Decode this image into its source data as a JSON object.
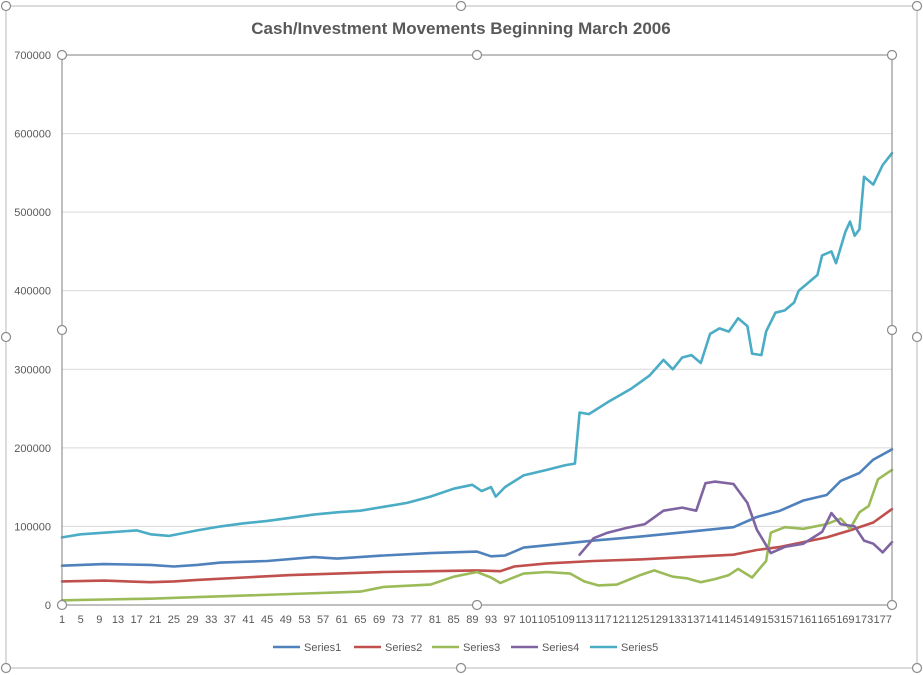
{
  "chart_data": {
    "type": "line",
    "title": "Cash/Investment Movements Beginning March 2006",
    "xlabel": "",
    "ylabel": "",
    "ylim": [
      0,
      700000
    ],
    "y_ticks": [
      "0",
      "100000",
      "200000",
      "300000",
      "400000",
      "500000",
      "600000",
      "700000"
    ],
    "x_range": [
      1,
      179
    ],
    "x_tick_labels": [
      "1",
      "5",
      "9",
      "13",
      "17",
      "21",
      "25",
      "29",
      "33",
      "37",
      "41",
      "45",
      "49",
      "53",
      "57",
      "61",
      "65",
      "69",
      "73",
      "77",
      "81",
      "85",
      "89",
      "93",
      "97",
      "101",
      "105",
      "109",
      "113",
      "117",
      "121",
      "125",
      "129",
      "133",
      "137",
      "141",
      "145",
      "149",
      "153",
      "157",
      "161",
      "165",
      "169",
      "173",
      "177"
    ],
    "grid": "horizontal",
    "legend_position": "bottom",
    "series": [
      {
        "name": "Series1",
        "color": "#4f81bd",
        "points": [
          [
            1,
            50000
          ],
          [
            10,
            52000
          ],
          [
            20,
            51000
          ],
          [
            25,
            49000
          ],
          [
            30,
            51000
          ],
          [
            35,
            54000
          ],
          [
            45,
            56000
          ],
          [
            55,
            61000
          ],
          [
            60,
            59000
          ],
          [
            70,
            63000
          ],
          [
            80,
            66000
          ],
          [
            90,
            68000
          ],
          [
            93,
            62000
          ],
          [
            96,
            63000
          ],
          [
            100,
            73000
          ],
          [
            110,
            79000
          ],
          [
            115,
            82000
          ],
          [
            125,
            87000
          ],
          [
            135,
            93000
          ],
          [
            145,
            99000
          ],
          [
            150,
            112000
          ],
          [
            155,
            120000
          ],
          [
            160,
            133000
          ],
          [
            165,
            140000
          ],
          [
            168,
            158000
          ],
          [
            172,
            168000
          ],
          [
            175,
            185000
          ],
          [
            179,
            198000
          ]
        ]
      },
      {
        "name": "Series2",
        "color": "#c0504d",
        "points": [
          [
            1,
            30000
          ],
          [
            10,
            31000
          ],
          [
            20,
            29000
          ],
          [
            25,
            30000
          ],
          [
            30,
            32000
          ],
          [
            40,
            35000
          ],
          [
            50,
            38000
          ],
          [
            60,
            40000
          ],
          [
            70,
            42000
          ],
          [
            80,
            43000
          ],
          [
            90,
            44000
          ],
          [
            95,
            43000
          ],
          [
            98,
            49000
          ],
          [
            105,
            53000
          ],
          [
            115,
            56000
          ],
          [
            125,
            58000
          ],
          [
            135,
            61000
          ],
          [
            145,
            64000
          ],
          [
            150,
            70000
          ],
          [
            155,
            74000
          ],
          [
            160,
            80000
          ],
          [
            165,
            86000
          ],
          [
            170,
            95000
          ],
          [
            175,
            105000
          ],
          [
            179,
            122000
          ]
        ]
      },
      {
        "name": "Series3",
        "color": "#9bbb59",
        "points": [
          [
            1,
            6000
          ],
          [
            10,
            7000
          ],
          [
            20,
            8000
          ],
          [
            30,
            10000
          ],
          [
            40,
            12000
          ],
          [
            50,
            14000
          ],
          [
            60,
            16000
          ],
          [
            65,
            17000
          ],
          [
            70,
            23000
          ],
          [
            80,
            26000
          ],
          [
            85,
            36000
          ],
          [
            90,
            42000
          ],
          [
            93,
            35000
          ],
          [
            95,
            28000
          ],
          [
            97,
            33000
          ],
          [
            100,
            40000
          ],
          [
            105,
            42000
          ],
          [
            110,
            40000
          ],
          [
            113,
            30000
          ],
          [
            116,
            25000
          ],
          [
            120,
            26000
          ],
          [
            125,
            38000
          ],
          [
            128,
            44000
          ],
          [
            132,
            36000
          ],
          [
            135,
            34000
          ],
          [
            138,
            29000
          ],
          [
            141,
            33000
          ],
          [
            144,
            38000
          ],
          [
            146,
            46000
          ],
          [
            149,
            35000
          ],
          [
            152,
            56000
          ],
          [
            153,
            92000
          ],
          [
            156,
            99000
          ],
          [
            160,
            97000
          ],
          [
            165,
            103000
          ],
          [
            168,
            110000
          ],
          [
            170,
            97000
          ],
          [
            172,
            118000
          ],
          [
            174,
            126000
          ],
          [
            176,
            160000
          ],
          [
            179,
            172000
          ]
        ]
      },
      {
        "name": "Series4",
        "color": "#8064a2",
        "points": [
          [
            112,
            64000
          ],
          [
            115,
            85000
          ],
          [
            118,
            92000
          ],
          [
            122,
            98000
          ],
          [
            126,
            103000
          ],
          [
            130,
            120000
          ],
          [
            134,
            124000
          ],
          [
            137,
            120000
          ],
          [
            139,
            155000
          ],
          [
            141,
            157000
          ],
          [
            145,
            154000
          ],
          [
            148,
            130000
          ],
          [
            150,
            96000
          ],
          [
            153,
            66000
          ],
          [
            156,
            74000
          ],
          [
            160,
            78000
          ],
          [
            164,
            93000
          ],
          [
            166,
            117000
          ],
          [
            168,
            103000
          ],
          [
            171,
            100000
          ],
          [
            173,
            82000
          ],
          [
            175,
            78000
          ],
          [
            177,
            67000
          ],
          [
            179,
            80000
          ]
        ]
      },
      {
        "name": "Series5",
        "color": "#4bacc6",
        "points": [
          [
            1,
            86000
          ],
          [
            5,
            90000
          ],
          [
            10,
            92000
          ],
          [
            17,
            95000
          ],
          [
            20,
            90000
          ],
          [
            24,
            88000
          ],
          [
            30,
            95000
          ],
          [
            35,
            100000
          ],
          [
            40,
            104000
          ],
          [
            45,
            107000
          ],
          [
            50,
            111000
          ],
          [
            55,
            115000
          ],
          [
            60,
            118000
          ],
          [
            65,
            120000
          ],
          [
            70,
            125000
          ],
          [
            75,
            130000
          ],
          [
            80,
            138000
          ],
          [
            85,
            148000
          ],
          [
            89,
            153000
          ],
          [
            91,
            145000
          ],
          [
            93,
            150000
          ],
          [
            94,
            138000
          ],
          [
            96,
            150000
          ],
          [
            100,
            165000
          ],
          [
            105,
            172000
          ],
          [
            109,
            178000
          ],
          [
            111,
            180000
          ],
          [
            112,
            245000
          ],
          [
            114,
            243000
          ],
          [
            118,
            258000
          ],
          [
            123,
            275000
          ],
          [
            127,
            292000
          ],
          [
            130,
            312000
          ],
          [
            132,
            300000
          ],
          [
            134,
            315000
          ],
          [
            136,
            318000
          ],
          [
            138,
            308000
          ],
          [
            140,
            345000
          ],
          [
            142,
            352000
          ],
          [
            144,
            348000
          ],
          [
            146,
            365000
          ],
          [
            148,
            355000
          ],
          [
            149,
            320000
          ],
          [
            151,
            318000
          ],
          [
            152,
            348000
          ],
          [
            154,
            372000
          ],
          [
            156,
            375000
          ],
          [
            158,
            385000
          ],
          [
            159,
            400000
          ],
          [
            161,
            410000
          ],
          [
            163,
            420000
          ],
          [
            164,
            445000
          ],
          [
            166,
            450000
          ],
          [
            167,
            435000
          ],
          [
            169,
            475000
          ],
          [
            170,
            488000
          ],
          [
            171,
            470000
          ],
          [
            172,
            478000
          ],
          [
            173,
            545000
          ],
          [
            175,
            535000
          ],
          [
            177,
            560000
          ],
          [
            179,
            575000
          ]
        ]
      }
    ]
  }
}
